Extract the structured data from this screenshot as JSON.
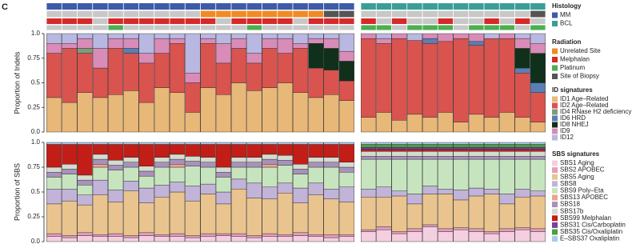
{
  "panel_label": "C",
  "tracks": {
    "histology": [
      "MM",
      "MM",
      "MM",
      "MM",
      "MM",
      "MM",
      "MM",
      "MM",
      "MM",
      "MM",
      "MM",
      "MM",
      "MM",
      "MM",
      "MM",
      "MM",
      "MM",
      "MM",
      "MM",
      "MM",
      "BCL",
      "BCL",
      "BCL",
      "BCL",
      "BCL",
      "BCL",
      "BCL",
      "BCL",
      "BCL",
      "BCL",
      "BCL",
      "BCL"
    ],
    "unrelated_site": [
      0,
      0,
      0,
      0,
      0,
      0,
      0,
      0,
      0,
      0,
      1,
      1,
      1,
      1,
      1,
      1,
      1,
      1,
      1,
      1,
      0,
      0,
      0,
      0,
      0,
      0,
      0,
      0,
      0,
      0,
      0,
      0
    ],
    "site_of_biopsy": [
      0,
      0,
      0,
      0,
      0,
      0,
      0,
      0,
      0,
      0,
      0,
      0,
      0,
      0,
      0,
      0,
      0,
      0,
      1,
      1,
      0,
      0,
      0,
      0,
      0,
      0,
      0,
      0,
      0,
      0,
      0,
      1
    ],
    "melphalan": [
      1,
      1,
      1,
      0,
      1,
      1,
      1,
      1,
      1,
      1,
      1,
      0,
      1,
      1,
      1,
      1,
      0,
      1,
      1,
      1,
      1,
      0,
      1,
      0,
      0,
      1,
      0,
      0,
      1,
      0,
      1,
      0
    ],
    "platinum": [
      0,
      0,
      0,
      0,
      1,
      0,
      0,
      0,
      0,
      0,
      0,
      0,
      0,
      1,
      0,
      0,
      0,
      0,
      0,
      0,
      1,
      1,
      0,
      1,
      1,
      1,
      0,
      1,
      1,
      1,
      0,
      1
    ]
  },
  "legends": [
    {
      "title": "Histology",
      "items": [
        {
          "name": "MM",
          "color": "#3c5ba8"
        },
        {
          "name": "BCL",
          "color": "#3a9e95"
        }
      ]
    },
    {
      "title": "Radiation",
      "items": [
        {
          "name": "Unrelated Site",
          "color": "#f08a24"
        },
        {
          "name": "Melphalan",
          "color": "#d62a2a"
        },
        {
          "name": "Platinum",
          "color": "#4caf50"
        },
        {
          "name": "Site of Biopsy",
          "color": "#555555"
        }
      ]
    }
  ],
  "chart_data": [
    {
      "type": "stacked-bar",
      "y_label": "Proportion of Indels",
      "legend_title": "ID signatures",
      "ylim": [
        0,
        1
      ],
      "yticks": [
        {
          "value": 0,
          "label": "0.0"
        },
        0.25,
        0.5,
        0.75,
        {
          "value": 1,
          "label": "1.0"
        }
      ],
      "categories": [
        null,
        null,
        null,
        null,
        null,
        null,
        null,
        null,
        null,
        null,
        null,
        null,
        null,
        null,
        null,
        null,
        null,
        null,
        null,
        null,
        null,
        null,
        null,
        null,
        null,
        null,
        null,
        null,
        null,
        null,
        null,
        null
      ],
      "series": [
        {
          "name": "ID1 Age–Related",
          "color": "#e8b878",
          "values": [
            0.35,
            0.3,
            0.4,
            0.35,
            0.38,
            0.42,
            0.3,
            0.45,
            0.4,
            0.2,
            0.45,
            0.38,
            0.5,
            0.42,
            0.45,
            0.5,
            0.4,
            0.35,
            0.38,
            0.32,
            0.15,
            0.2,
            0.12,
            0.18,
            0.15,
            0.2,
            0.1,
            0.18,
            0.15,
            0.2,
            0.15,
            0.1
          ]
        },
        {
          "name": "ID2 Age–Related",
          "color": "#d9534f",
          "values": [
            0.45,
            0.55,
            0.4,
            0.3,
            0.47,
            0.38,
            0.4,
            0.35,
            0.5,
            0.3,
            0.45,
            0.32,
            0.35,
            0.28,
            0.4,
            0.3,
            0.45,
            0.3,
            0.25,
            0.2,
            0.8,
            0.7,
            0.83,
            0.75,
            0.75,
            0.72,
            0.85,
            0.7,
            0.8,
            0.75,
            0.45,
            0.3
          ]
        },
        {
          "name": "ID4 RNase H2 deficiency",
          "color": "#7f9c7a",
          "values": [
            0,
            0,
            0.05,
            0,
            0,
            0,
            0,
            0,
            0,
            0,
            0,
            0,
            0,
            0,
            0,
            0,
            0,
            0,
            0,
            0,
            0,
            0,
            0,
            0,
            0,
            0,
            0,
            0,
            0,
            0,
            0,
            0
          ]
        },
        {
          "name": "ID6 HRD",
          "color": "#5a7fb5",
          "values": [
            0,
            0,
            0,
            0,
            0,
            0.05,
            0,
            0,
            0,
            0,
            0,
            0,
            0,
            0,
            0,
            0,
            0,
            0,
            0,
            0,
            0,
            0,
            0,
            0,
            0.05,
            0,
            0,
            0.04,
            0,
            0,
            0.05,
            0.1
          ]
        },
        {
          "name": "ID8 NHEJ",
          "color": "#10301c",
          "values": [
            0,
            0,
            0,
            0,
            0,
            0,
            0,
            0,
            0,
            0,
            0,
            0,
            0,
            0,
            0,
            0,
            0,
            0.25,
            0.22,
            0.2,
            0,
            0,
            0,
            0,
            0,
            0,
            0,
            0,
            0,
            0,
            0.2,
            0.3
          ]
        },
        {
          "name": "ID9",
          "color": "#d98cb8",
          "values": [
            0.1,
            0.05,
            0.1,
            0.2,
            0.1,
            0.1,
            0.1,
            0.15,
            0.05,
            0.1,
            0.05,
            0.2,
            0.1,
            0.1,
            0.1,
            0.15,
            0.05,
            0.05,
            0.1,
            0.1,
            0.05,
            0.05,
            0.05,
            0,
            0.05,
            0.08,
            0.05,
            0.08,
            0,
            0.05,
            0.1,
            0.1
          ]
        },
        {
          "name": "ID12",
          "color": "#b8b8e2",
          "values": [
            0.1,
            0.1,
            0.05,
            0.15,
            0.05,
            0.05,
            0.2,
            0.05,
            0.05,
            0.4,
            0.05,
            0.1,
            0.05,
            0.2,
            0.05,
            0.05,
            0.1,
            0.05,
            0.05,
            0.18,
            0,
            0.05,
            0,
            0.07,
            0,
            0,
            0,
            0,
            0.05,
            0,
            0.05,
            0.1
          ]
        }
      ]
    },
    {
      "type": "stacked-bar",
      "y_label": "Proportion of SBS",
      "legend_title": "SBS signatures",
      "ylim": [
        0,
        1
      ],
      "yticks": [
        {
          "value": 0,
          "label": "0.0"
        },
        0.25,
        0.5,
        0.75,
        {
          "value": 1,
          "label": "1.0"
        }
      ],
      "categories": [
        null,
        null,
        null,
        null,
        null,
        null,
        null,
        null,
        null,
        null,
        null,
        null,
        null,
        null,
        null,
        null,
        null,
        null,
        null,
        null,
        null,
        null,
        null,
        null,
        null,
        null,
        null,
        null,
        null,
        null,
        null,
        null
      ],
      "series": [
        {
          "name": "SBS1 Aging",
          "color": "#f4cfe0",
          "values": [
            0.05,
            0.04,
            0.06,
            0.05,
            0.05,
            0.04,
            0.06,
            0.05,
            0.05,
            0.04,
            0.05,
            0.06,
            0.05,
            0.04,
            0.05,
            0.05,
            0.06,
            0.05,
            0.04,
            0.05,
            0.1,
            0.12,
            0.08,
            0.1,
            0.15,
            0.1,
            0.12,
            0.1,
            0.08,
            0.1,
            0.12,
            0.1
          ]
        },
        {
          "name": "SBS2 APOBEC",
          "color": "#e79cc0",
          "values": [
            0.03,
            0.02,
            0.03,
            0.02,
            0.03,
            0.02,
            0.03,
            0.02,
            0.03,
            0.02,
            0.03,
            0.02,
            0.03,
            0.02,
            0.03,
            0.02,
            0.03,
            0.02,
            0.03,
            0.02,
            0.02,
            0.03,
            0.02,
            0.03,
            0.02,
            0.03,
            0.02,
            0.03,
            0.02,
            0.03,
            0.02,
            0.03
          ]
        },
        {
          "name": "SBS5 Aging",
          "color": "#eac48e",
          "values": [
            0.3,
            0.35,
            0.28,
            0.4,
            0.32,
            0.45,
            0.3,
            0.38,
            0.42,
            0.35,
            0.4,
            0.3,
            0.45,
            0.38,
            0.35,
            0.42,
            0.3,
            0.4,
            0.36,
            0.33,
            0.33,
            0.3,
            0.36,
            0.25,
            0.31,
            0.35,
            0.28,
            0.33,
            0.38,
            0.25,
            0.31,
            0.33
          ]
        },
        {
          "name": "SBS8",
          "color": "#c2b3d9",
          "values": [
            0.15,
            0.12,
            0.1,
            0.15,
            0.12,
            0.1,
            0.15,
            0.12,
            0.1,
            0.15,
            0.1,
            0.12,
            0.1,
            0.15,
            0.12,
            0.1,
            0.15,
            0.12,
            0.1,
            0.15,
            0.08,
            0.1,
            0.05,
            0.1,
            0.08,
            0.05,
            0.1,
            0.08,
            0.05,
            0.1,
            0.08,
            0.05
          ]
        },
        {
          "name": "SBS9 Poly–Eta",
          "color": "#c6e5bf",
          "values": [
            0.12,
            0.15,
            0.1,
            0.13,
            0.2,
            0.14,
            0.12,
            0.18,
            0.15,
            0.2,
            0.17,
            0.15,
            0.12,
            0.16,
            0.2,
            0.18,
            0.14,
            0.16,
            0.22,
            0.15,
            0.3,
            0.28,
            0.32,
            0.35,
            0.27,
            0.3,
            0.31,
            0.29,
            0.3,
            0.35,
            0.3,
            0.32
          ]
        },
        {
          "name": "SBS13 APOBEC",
          "color": "#eba392",
          "values": [
            0,
            0,
            0,
            0.03,
            0,
            0,
            0,
            0,
            0.03,
            0,
            0,
            0,
            0,
            0,
            0.03,
            0,
            0,
            0,
            0,
            0,
            0,
            0,
            0,
            0,
            0,
            0,
            0,
            0,
            0,
            0,
            0,
            0
          ]
        },
        {
          "name": "SBS18",
          "color": "#a892bb",
          "values": [
            0.05,
            0.05,
            0.05,
            0.05,
            0.05,
            0.05,
            0.05,
            0.05,
            0.05,
            0.05,
            0.05,
            0.05,
            0.05,
            0.05,
            0.05,
            0.05,
            0.05,
            0.05,
            0.05,
            0.05,
            0.03,
            0.03,
            0.03,
            0.03,
            0.03,
            0.03,
            0.03,
            0.03,
            0.03,
            0.03,
            0.03,
            0.03
          ]
        },
        {
          "name": "SBS17b",
          "color": "#d4dccf",
          "values": [
            0.05,
            0.05,
            0.05,
            0.05,
            0.05,
            0.05,
            0.05,
            0.05,
            0.05,
            0.05,
            0.05,
            0.05,
            0.05,
            0.05,
            0.05,
            0.05,
            0.05,
            0.05,
            0.05,
            0.05,
            0.05,
            0.05,
            0.05,
            0.05,
            0.05,
            0.05,
            0.05,
            0.05,
            0.05,
            0.05,
            0.05,
            0.05
          ]
        },
        {
          "name": "SBS99 Melphalan",
          "color": "#c21d17",
          "values": [
            0.23,
            0.2,
            0.31,
            0.1,
            0.16,
            0.13,
            0.22,
            0.13,
            0.1,
            0.12,
            0.13,
            0.23,
            0.13,
            0.13,
            0.1,
            0.11,
            0.2,
            0.13,
            0.13,
            0.18,
            0.02,
            0.02,
            0.02,
            0.02,
            0.02,
            0.02,
            0.02,
            0.02,
            0.02,
            0.02,
            0.02,
            0.02
          ]
        },
        {
          "name": "SBS31 Cis/Carboplatin",
          "color": "#7b3fa0",
          "values": [
            0,
            0,
            0,
            0,
            0,
            0,
            0,
            0,
            0,
            0,
            0,
            0,
            0,
            0,
            0,
            0,
            0,
            0,
            0,
            0,
            0.02,
            0.02,
            0.02,
            0.02,
            0.02,
            0.02,
            0.02,
            0.02,
            0.02,
            0.02,
            0.02,
            0.02
          ]
        },
        {
          "name": "SBS35 Cis/Oxaliplatin",
          "color": "#4aa040",
          "values": [
            0,
            0,
            0,
            0,
            0,
            0,
            0,
            0,
            0,
            0,
            0,
            0,
            0,
            0,
            0,
            0,
            0,
            0,
            0,
            0,
            0.03,
            0.03,
            0.03,
            0.03,
            0.03,
            0.03,
            0.03,
            0.03,
            0.03,
            0.03,
            0.03,
            0.03
          ]
        },
        {
          "name": "E–SBS37 Oxaliplatin",
          "color": "#a9cbe8",
          "values": [
            0.02,
            0.02,
            0.02,
            0.02,
            0.02,
            0.02,
            0.02,
            0.02,
            0.02,
            0.02,
            0.02,
            0.02,
            0.02,
            0.02,
            0.02,
            0.02,
            0.02,
            0.02,
            0.02,
            0.02,
            0.02,
            0.02,
            0.02,
            0.02,
            0.02,
            0.02,
            0.02,
            0.02,
            0.02,
            0.02,
            0.02,
            0.02
          ]
        }
      ]
    }
  ]
}
